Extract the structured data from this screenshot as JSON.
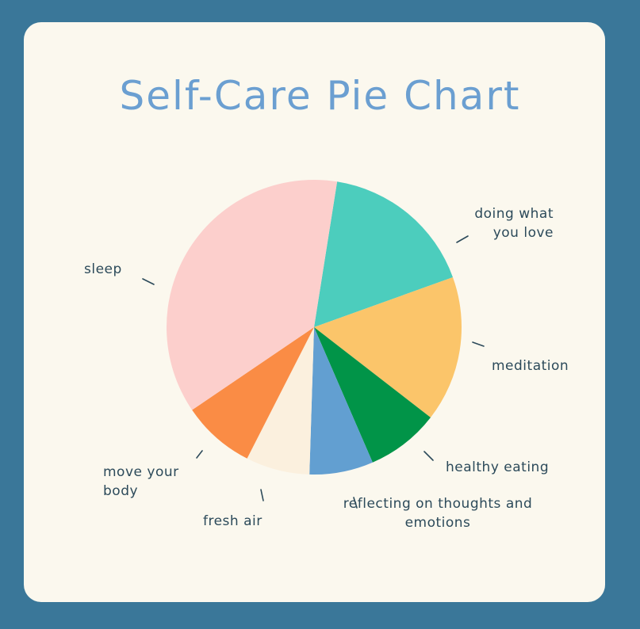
{
  "chart_data": {
    "type": "pie",
    "title": "Self-Care Pie Chart",
    "categories": [
      "doing what you love",
      "meditation",
      "healthy eating",
      "reflecting on thoughts and emotions",
      "fresh air",
      "move your body",
      "sleep"
    ],
    "values": [
      17,
      16,
      8,
      7,
      7,
      8,
      37
    ],
    "colors": [
      "#4ccdbd",
      "#fbc56a",
      "#019448",
      "#629fd1",
      "#fbf0de",
      "#fa8c45",
      "#fccfcc"
    ]
  }
}
